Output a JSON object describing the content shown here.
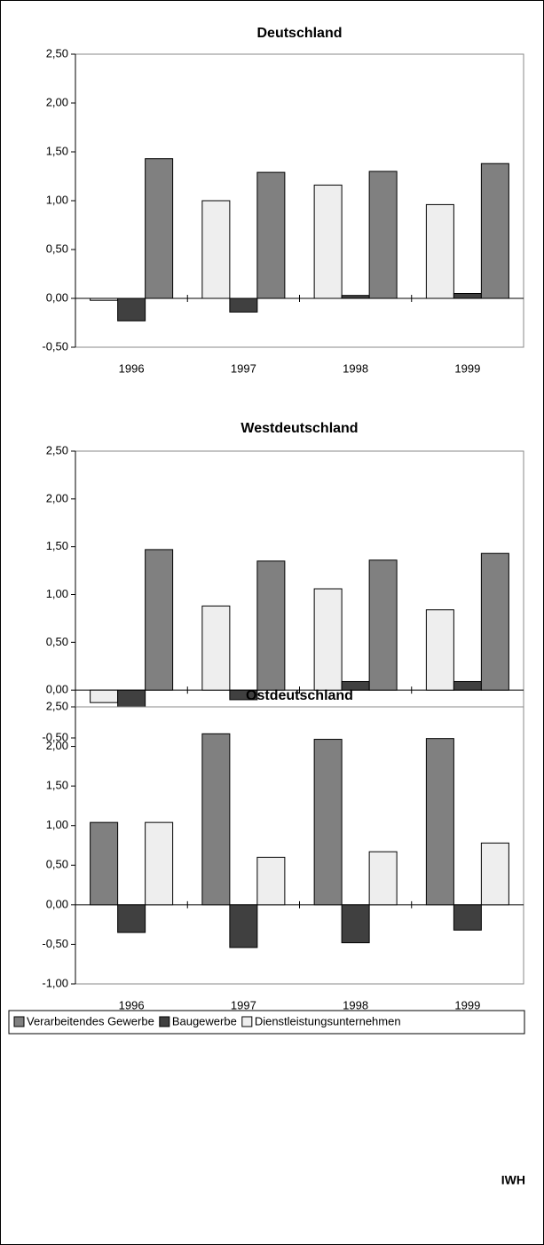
{
  "chart_data": [
    {
      "type": "bar",
      "title": "Deutschland",
      "categories": [
        "1996",
        "1997",
        "1998",
        "1999"
      ],
      "series": [
        {
          "name": "Dienstleistungsunternehmen",
          "color": "#eeeeee",
          "values": [
            -0.02,
            1.0,
            1.16,
            0.96
          ]
        },
        {
          "name": "Baugewerbe",
          "color": "#404040",
          "values": [
            -0.23,
            -0.14,
            0.03,
            0.05
          ]
        },
        {
          "name": "Verarbeitendes Gewerbe",
          "color": "#808080",
          "values": [
            1.43,
            1.29,
            1.3,
            1.38
          ]
        }
      ],
      "ylim": [
        -0.5,
        2.5
      ],
      "yticks": [
        {
          "value": -0.5,
          "label": "-0,50"
        },
        {
          "value": 0,
          "label": "0,00"
        },
        {
          "value": 0.5,
          "label": "0,50"
        },
        {
          "value": 1,
          "label": "1,00"
        },
        {
          "value": 1.5,
          "label": "1,50"
        },
        {
          "value": 2,
          "label": "2,00"
        },
        {
          "value": 2.5,
          "label": "2,50"
        }
      ]
    },
    {
      "type": "bar",
      "title": "Westdeutschland",
      "categories": [
        "1996",
        "1997",
        "1998",
        "1999"
      ],
      "series": [
        {
          "name": "Dienstleistungsunternehmen",
          "color": "#eeeeee",
          "values": [
            -0.13,
            0.88,
            1.06,
            0.84
          ]
        },
        {
          "name": "Baugewerbe",
          "color": "#404040",
          "values": [
            -0.22,
            -0.1,
            0.09,
            0.09
          ]
        },
        {
          "name": "Verarbeitendes Gewerbe",
          "color": "#808080",
          "values": [
            1.47,
            1.35,
            1.36,
            1.43
          ]
        }
      ],
      "ylim": [
        -0.5,
        2.5
      ],
      "yticks": [
        {
          "value": -0.5,
          "label": "-0,50"
        },
        {
          "value": 0,
          "label": "0,00"
        },
        {
          "value": 0.5,
          "label": "0,50"
        },
        {
          "value": 1,
          "label": "1,00"
        },
        {
          "value": 1.5,
          "label": "1,50"
        },
        {
          "value": 2,
          "label": "2,00"
        },
        {
          "value": 2.5,
          "label": "2,50"
        }
      ]
    },
    {
      "type": "bar",
      "title": "Ostdeutschland",
      "categories": [
        "1996",
        "1997",
        "1998",
        "1999"
      ],
      "series": [
        {
          "name": "Verarbeitendes Gewerbe",
          "color": "#808080",
          "values": [
            1.04,
            2.16,
            2.09,
            2.1
          ]
        },
        {
          "name": "Baugewerbe",
          "color": "#404040",
          "values": [
            -0.35,
            -0.54,
            -0.48,
            -0.32
          ]
        },
        {
          "name": "Dienstleistungsunternehmen",
          "color": "#eeeeee",
          "values": [
            1.04,
            0.6,
            0.67,
            0.78
          ]
        }
      ],
      "ylim": [
        -1,
        2.5
      ],
      "yticks": [
        {
          "value": -1,
          "label": "-1,00"
        },
        {
          "value": -0.5,
          "label": "-0,50"
        },
        {
          "value": 0,
          "label": "0,00"
        },
        {
          "value": 0.5,
          "label": "0,50"
        },
        {
          "value": 1,
          "label": "1,00"
        },
        {
          "value": 1.5,
          "label": "1,50"
        },
        {
          "value": 2,
          "label": "2,00"
        },
        {
          "value": 2.5,
          "label": "2,50"
        }
      ]
    }
  ],
  "source": "IWH"
}
